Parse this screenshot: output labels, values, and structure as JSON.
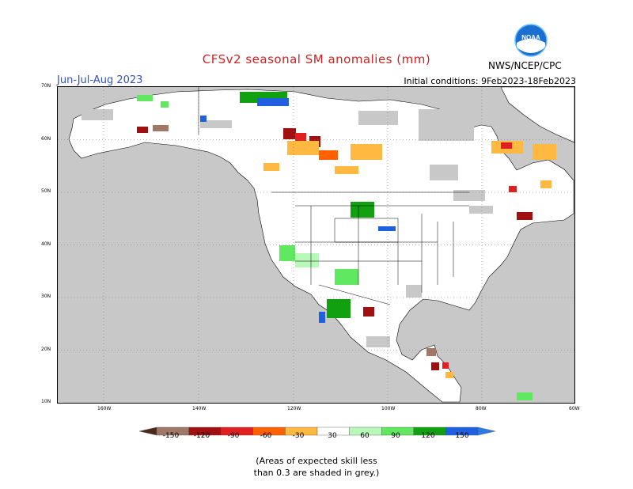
{
  "header": {
    "title": "CFSv2 seasonal SM anomalies (mm)",
    "season": "Jun-Jul-Aug 2023",
    "initial_conditions": "Initial conditions: 9Feb2023-18Feb2023",
    "agency": "NWS/NCEP/CPC",
    "logo_text": "NOAA"
  },
  "axes": {
    "lat_labels": [
      "70N",
      "60N",
      "50N",
      "40N",
      "30N",
      "20N",
      "10N"
    ],
    "lon_labels": [
      "160W",
      "140W",
      "120W",
      "100W",
      "80W",
      "60W"
    ]
  },
  "colorbar": {
    "labels": [
      "-150",
      "-120",
      "-90",
      "-60",
      "-30",
      "30",
      "60",
      "90",
      "120",
      "150"
    ],
    "colors": [
      "#4a2a1a",
      "#a07868",
      "#a01010",
      "#e02020",
      "#ff6000",
      "#ffb840",
      "#ffffff",
      "#b8f8b8",
      "#60e860",
      "#10a010",
      "#2060e0",
      "#2a7ae8"
    ]
  },
  "map_colors": {
    "ocean": "#c8c8c8",
    "land": "#ffffff",
    "grey_skill": "#c8c8c8",
    "coast": "#000000"
  },
  "footnote": {
    "line1": "(Areas of expected skill less",
    "line2": "than 0.3 are shaded in grey.)"
  }
}
